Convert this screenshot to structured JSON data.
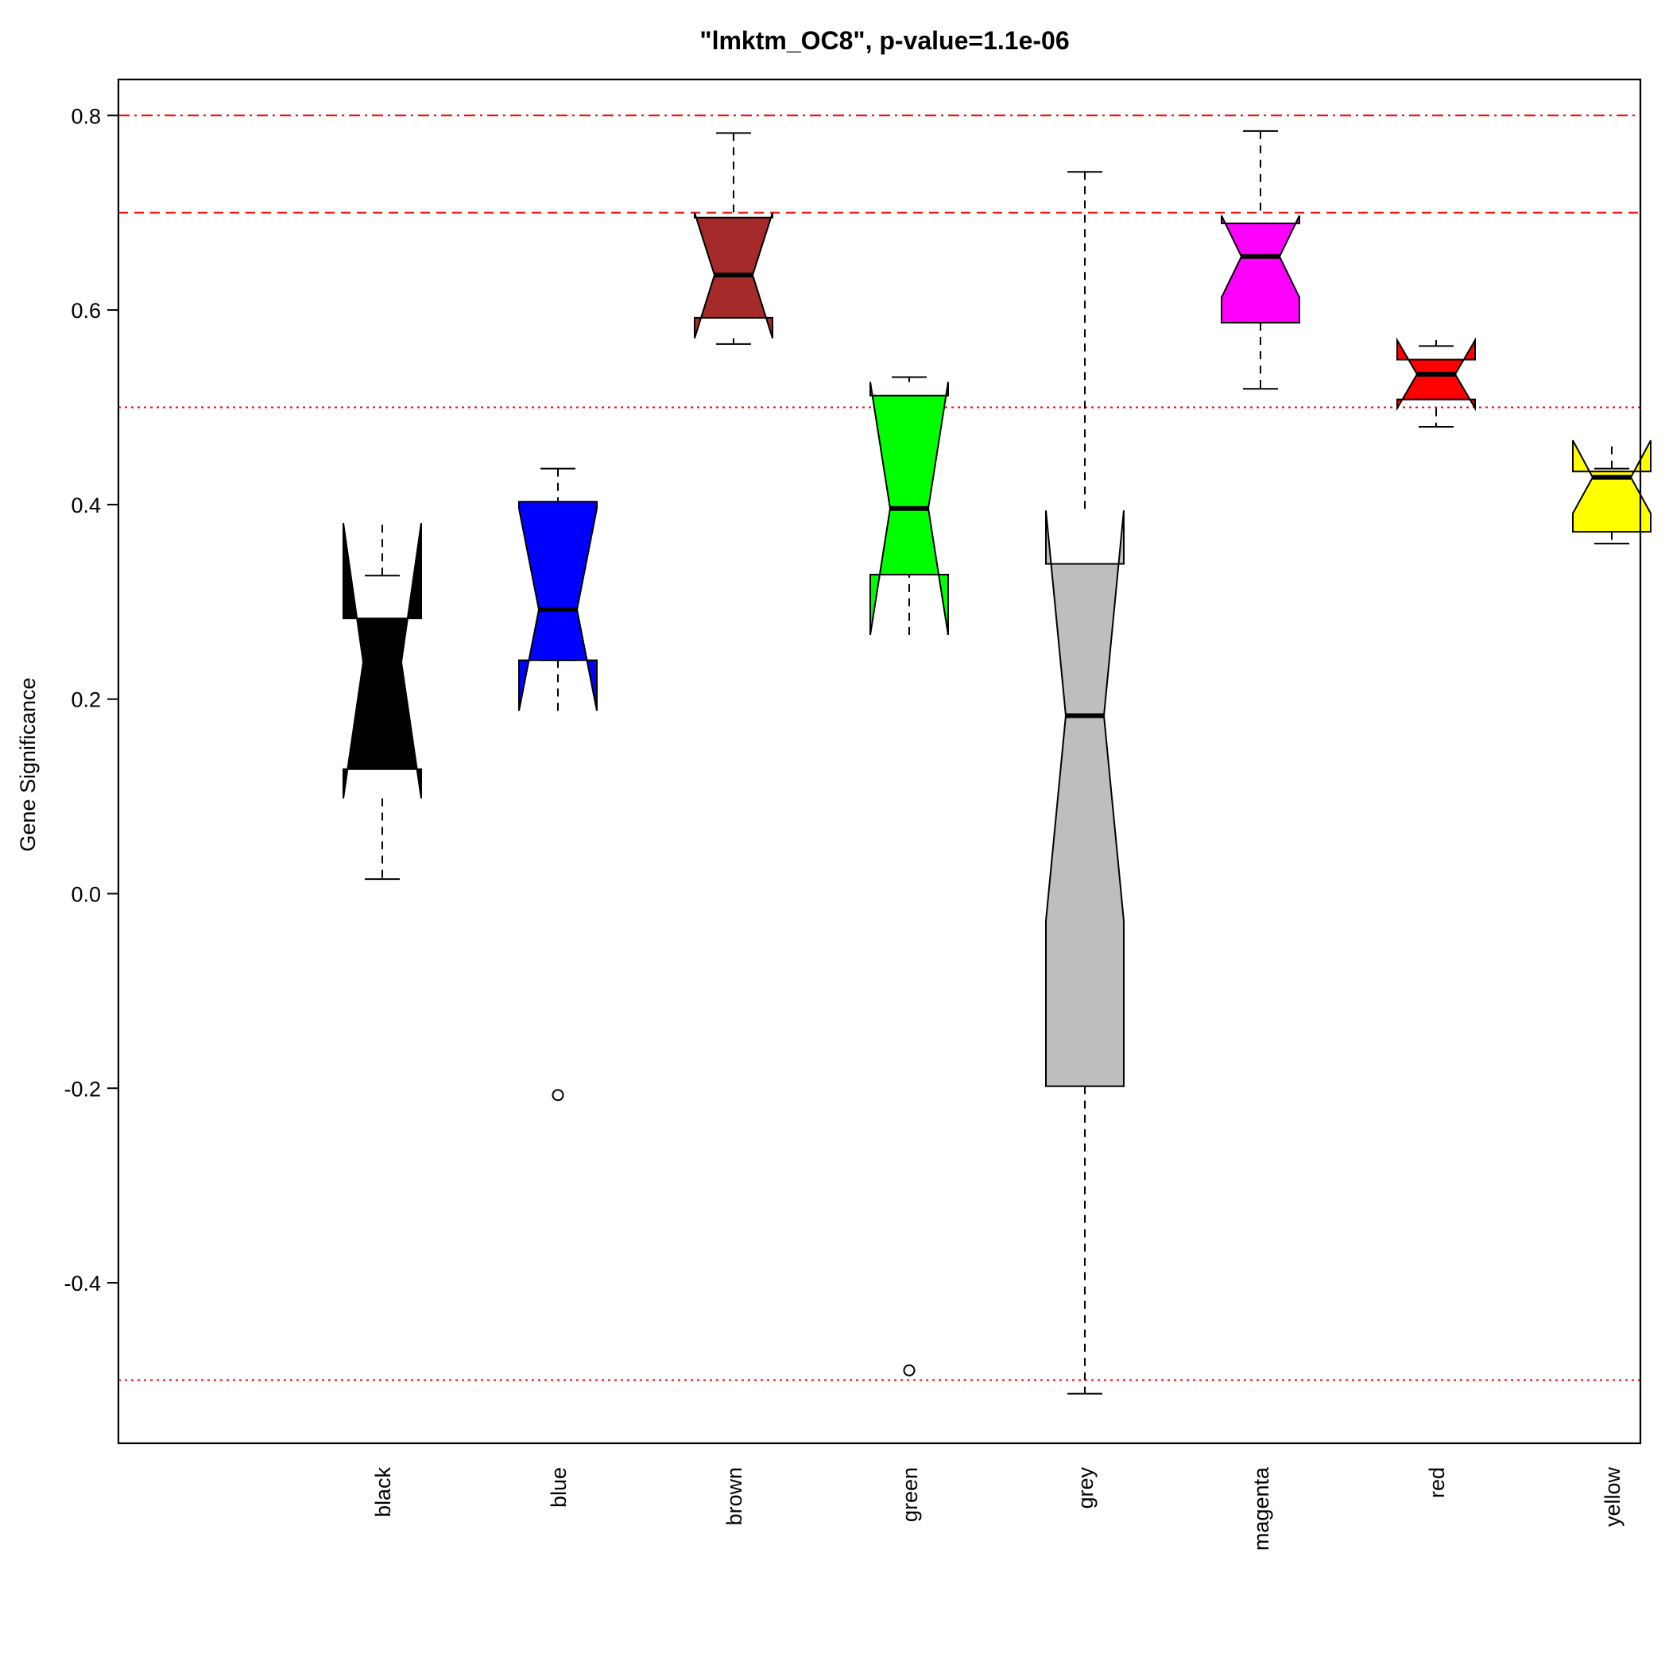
{
  "chart_data": {
    "type": "boxplot",
    "title": "\"lmktm_OC8\", p-value=1.1e-06",
    "xlabel": "",
    "ylabel": "Gene Significance",
    "ylim": [
      -0.565,
      0.837
    ],
    "yticks": [
      -0.4,
      -0.2,
      0.0,
      0.2,
      0.4,
      0.6,
      0.8
    ],
    "ytick_labels": [
      "-0.4",
      "-0.2",
      "0.0",
      "0.2",
      "0.4",
      "0.6",
      "0.8"
    ],
    "notched": true,
    "reference_lines": [
      {
        "y": 0.8,
        "style": "dotdash",
        "color": "#FF0000"
      },
      {
        "y": 0.7,
        "style": "dashed",
        "color": "#FF0000"
      },
      {
        "y": 0.5,
        "style": "dotted",
        "color": "#FF0000"
      },
      {
        "y": -0.5,
        "style": "dotted",
        "color": "#FF0000"
      }
    ],
    "categories": [
      "black",
      "blue",
      "brown",
      "green",
      "grey",
      "magenta",
      "red",
      "yellow"
    ],
    "boxes": [
      {
        "name": "black",
        "fill": "#000000",
        "whisker_low": 0.015,
        "q1": 0.128,
        "median": 0.238,
        "q3": 0.283,
        "whisker_high": 0.327,
        "notch_low": 0.098,
        "notch_high": 0.381,
        "outliers": []
      },
      {
        "name": "blue",
        "fill": "#0000FF",
        "whisker_low": 0.24,
        "q1": 0.24,
        "median": 0.292,
        "q3": 0.403,
        "whisker_high": 0.437,
        "notch_low": 0.188,
        "notch_high": 0.396,
        "outliers": [
          -0.207
        ]
      },
      {
        "name": "brown",
        "fill": "#A52A2A",
        "whisker_low": 0.565,
        "q1": 0.592,
        "median": 0.636,
        "q3": 0.695,
        "whisker_high": 0.782,
        "notch_low": 0.571,
        "notch_high": 0.7,
        "outliers": []
      },
      {
        "name": "green",
        "fill": "#00FF00",
        "whisker_low": 0.328,
        "q1": 0.328,
        "median": 0.396,
        "q3": 0.512,
        "whisker_high": 0.531,
        "notch_low": 0.266,
        "notch_high": 0.526,
        "outliers": [
          -0.49
        ]
      },
      {
        "name": "grey",
        "fill": "#BEBEBE",
        "whisker_low": -0.514,
        "q1": -0.198,
        "median": 0.183,
        "q3": 0.339,
        "whisker_high": 0.742,
        "notch_low": -0.028,
        "notch_high": 0.394,
        "outliers": []
      },
      {
        "name": "magenta",
        "fill": "#FF00FF",
        "whisker_low": 0.519,
        "q1": 0.587,
        "median": 0.655,
        "q3": 0.689,
        "whisker_high": 0.784,
        "notch_low": 0.613,
        "notch_high": 0.697,
        "outliers": []
      },
      {
        "name": "red",
        "fill": "#FF0000",
        "whisker_low": 0.48,
        "q1": 0.508,
        "median": 0.534,
        "q3": 0.549,
        "whisker_high": 0.563,
        "notch_low": 0.499,
        "notch_high": 0.569,
        "outliers": []
      },
      {
        "name": "yellow",
        "fill": "#FFFF00",
        "whisker_low": 0.36,
        "q1": 0.372,
        "median": 0.428,
        "q3": 0.434,
        "whisker_high": 0.437,
        "notch_low": 0.391,
        "notch_high": 0.466,
        "outliers": []
      }
    ]
  }
}
